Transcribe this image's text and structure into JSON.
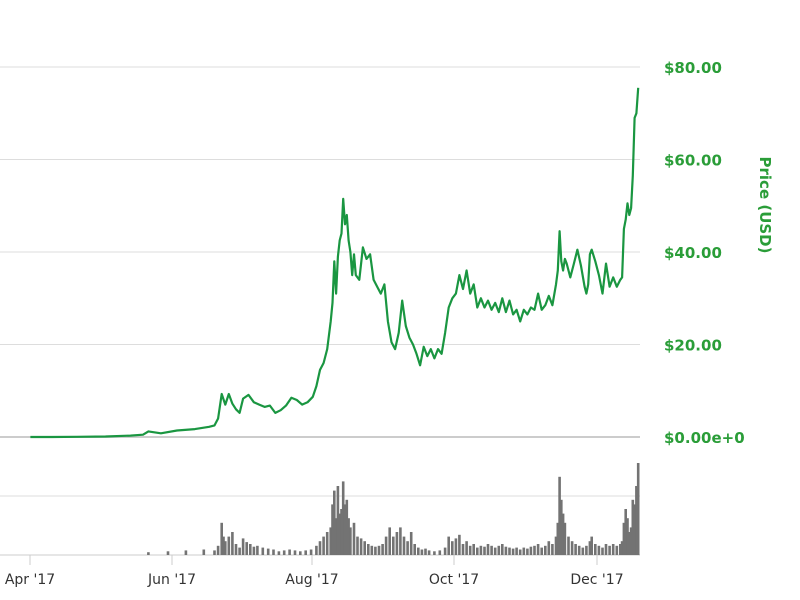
{
  "colors": {
    "price_line": "#1a9641",
    "axis_text": "#2a9d38",
    "volume_bar": "#737373",
    "grid": "#dddddd",
    "axis_line": "#cccccc",
    "background": "#ffffff"
  },
  "chart_data": {
    "type": "line",
    "ylabel": "Price (USD)",
    "y_ticks": [
      "$80.00",
      "$60.00",
      "$40.00",
      "$20.00",
      "$0.00e+0"
    ],
    "x_ticks": [
      "Apr '17",
      "Jun '17",
      "Aug '17",
      "Oct '17",
      "Dec '17"
    ],
    "ylim": [
      0,
      80
    ],
    "grid": true,
    "series": [
      {
        "values": [
          [
            "2017-03-20",
            0.0
          ],
          [
            "2017-04-01",
            0.0
          ],
          [
            "2017-04-15",
            0.05
          ],
          [
            "2017-05-01",
            0.1
          ],
          [
            "2017-05-15",
            0.3
          ],
          [
            "2017-05-22",
            0.5
          ],
          [
            "2017-05-25",
            1.2
          ],
          [
            "2017-06-01",
            0.8
          ],
          [
            "2017-06-10",
            1.4
          ],
          [
            "2017-06-20",
            1.7
          ],
          [
            "2017-06-28",
            2.2
          ],
          [
            "2017-07-01",
            2.5
          ],
          [
            "2017-07-03",
            4.0
          ],
          [
            "2017-07-05",
            9.3
          ],
          [
            "2017-07-07",
            7.0
          ],
          [
            "2017-07-09",
            9.3
          ],
          [
            "2017-07-11",
            7.2
          ],
          [
            "2017-07-13",
            6.0
          ],
          [
            "2017-07-15",
            5.2
          ],
          [
            "2017-07-17",
            8.3
          ],
          [
            "2017-07-20",
            9.1
          ],
          [
            "2017-07-23",
            7.5
          ],
          [
            "2017-07-26",
            7.0
          ],
          [
            "2017-07-29",
            6.5
          ],
          [
            "2017-08-01",
            6.8
          ],
          [
            "2017-08-04",
            5.2
          ],
          [
            "2017-08-07",
            5.8
          ],
          [
            "2017-08-10",
            6.8
          ],
          [
            "2017-08-13",
            8.5
          ],
          [
            "2017-08-16",
            8.0
          ],
          [
            "2017-08-19",
            7.0
          ],
          [
            "2017-08-22",
            7.5
          ],
          [
            "2017-08-25",
            8.7
          ],
          [
            "2017-08-27",
            11.0
          ],
          [
            "2017-08-29",
            14.5
          ],
          [
            "2017-08-31",
            16.0
          ],
          [
            "2017-09-02",
            19.0
          ],
          [
            "2017-09-04",
            25.0
          ],
          [
            "2017-09-05",
            29.0
          ],
          [
            "2017-09-06",
            38.0
          ],
          [
            "2017-09-07",
            31.0
          ],
          [
            "2017-09-08",
            39.0
          ],
          [
            "2017-09-09",
            42.5
          ],
          [
            "2017-09-10",
            44.0
          ],
          [
            "2017-09-11",
            51.5
          ],
          [
            "2017-09-12",
            46.0
          ],
          [
            "2017-09-13",
            48.0
          ],
          [
            "2017-09-14",
            42.5
          ],
          [
            "2017-09-15",
            40.0
          ],
          [
            "2017-09-16",
            35.0
          ],
          [
            "2017-09-17",
            39.5
          ],
          [
            "2017-09-18",
            35.0
          ],
          [
            "2017-09-20",
            34.0
          ],
          [
            "2017-09-22",
            41.0
          ],
          [
            "2017-09-24",
            38.5
          ],
          [
            "2017-09-26",
            39.5
          ],
          [
            "2017-09-28",
            34.0
          ],
          [
            "2017-09-30",
            32.5
          ],
          [
            "2017-10-02",
            31.0
          ],
          [
            "2017-10-04",
            33.0
          ],
          [
            "2017-10-06",
            25.0
          ],
          [
            "2017-10-08",
            20.5
          ],
          [
            "2017-10-10",
            19.0
          ],
          [
            "2017-10-12",
            22.5
          ],
          [
            "2017-10-14",
            29.5
          ],
          [
            "2017-10-16",
            24.0
          ],
          [
            "2017-10-18",
            21.5
          ],
          [
            "2017-10-20",
            20.0
          ],
          [
            "2017-10-22",
            18.0
          ],
          [
            "2017-10-24",
            15.5
          ],
          [
            "2017-10-26",
            19.5
          ],
          [
            "2017-10-28",
            17.5
          ],
          [
            "2017-10-30",
            19.0
          ],
          [
            "2017-11-01",
            17.0
          ],
          [
            "2017-11-03",
            19.0
          ],
          [
            "2017-11-05",
            18.0
          ],
          [
            "2017-11-07",
            22.5
          ],
          [
            "2017-11-09",
            28.0
          ],
          [
            "2017-11-11",
            30.0
          ],
          [
            "2017-11-13",
            31.0
          ],
          [
            "2017-11-15",
            35.0
          ],
          [
            "2017-11-17",
            32.0
          ],
          [
            "2017-11-19",
            36.0
          ],
          [
            "2017-11-21",
            31.0
          ],
          [
            "2017-11-23",
            33.0
          ],
          [
            "2017-11-25",
            28.0
          ],
          [
            "2017-11-27",
            30.0
          ],
          [
            "2017-11-29",
            28.0
          ],
          [
            "2017-12-01",
            29.5
          ],
          [
            "2017-12-03",
            27.5
          ],
          [
            "2017-12-05",
            29.0
          ],
          [
            "2017-12-07",
            27.0
          ],
          [
            "2017-12-09",
            30.0
          ],
          [
            "2017-12-11",
            27.0
          ],
          [
            "2017-12-13",
            29.5
          ],
          [
            "2017-12-15",
            26.5
          ],
          [
            "2017-12-17",
            27.5
          ],
          [
            "2017-12-19",
            25.0
          ],
          [
            "2017-12-21",
            27.5
          ],
          [
            "2017-12-23",
            26.5
          ],
          [
            "2017-12-25",
            28.0
          ],
          [
            "2017-12-27",
            27.5
          ],
          [
            "2017-12-29",
            31.0
          ],
          [
            "2017-12-31",
            27.5
          ],
          [
            "2018-01-02",
            28.5
          ],
          [
            "2018-01-04",
            30.5
          ],
          [
            "2018-01-06",
            28.5
          ],
          [
            "2018-01-08",
            33.0
          ],
          [
            "2018-01-09",
            36.0
          ],
          [
            "2018-01-10",
            44.5
          ],
          [
            "2018-01-11",
            38.0
          ],
          [
            "2018-01-12",
            36.0
          ],
          [
            "2018-01-13",
            38.5
          ],
          [
            "2018-01-14",
            37.5
          ],
          [
            "2018-01-16",
            34.5
          ],
          [
            "2018-01-18",
            37.5
          ],
          [
            "2018-01-20",
            40.5
          ],
          [
            "2018-01-22",
            37.0
          ],
          [
            "2018-01-24",
            32.5
          ],
          [
            "2018-01-25",
            31.0
          ],
          [
            "2018-01-26",
            33.0
          ],
          [
            "2018-01-27",
            39.5
          ],
          [
            "2018-01-28",
            40.5
          ],
          [
            "2018-01-30",
            38.0
          ],
          [
            "2018-02-01",
            35.0
          ],
          [
            "2018-02-03",
            31.0
          ],
          [
            "2018-02-05",
            37.5
          ],
          [
            "2018-02-07",
            32.5
          ],
          [
            "2018-02-09",
            34.5
          ],
          [
            "2018-02-11",
            32.5
          ],
          [
            "2018-02-13",
            34.0
          ],
          [
            "2018-02-14",
            34.5
          ],
          [
            "2018-02-15",
            45.0
          ],
          [
            "2018-02-16",
            47.0
          ],
          [
            "2018-02-17",
            50.5
          ],
          [
            "2018-02-18",
            48.0
          ],
          [
            "2018-02-19",
            49.5
          ],
          [
            "2018-02-20",
            56.5
          ],
          [
            "2018-02-21",
            69.0
          ],
          [
            "2018-02-22",
            70.0
          ],
          [
            "2018-02-23",
            75.5
          ]
        ]
      }
    ],
    "volume": [
      [
        "2017-05-25",
        0.03
      ],
      [
        "2017-06-05",
        0.04
      ],
      [
        "2017-06-15",
        0.05
      ],
      [
        "2017-06-25",
        0.06
      ],
      [
        "2017-07-01",
        0.05
      ],
      [
        "2017-07-03",
        0.1
      ],
      [
        "2017-07-05",
        0.35
      ],
      [
        "2017-07-06",
        0.2
      ],
      [
        "2017-07-07",
        0.15
      ],
      [
        "2017-07-09",
        0.2
      ],
      [
        "2017-07-11",
        0.25
      ],
      [
        "2017-07-13",
        0.12
      ],
      [
        "2017-07-15",
        0.08
      ],
      [
        "2017-07-17",
        0.18
      ],
      [
        "2017-07-19",
        0.14
      ],
      [
        "2017-07-21",
        0.12
      ],
      [
        "2017-07-23",
        0.09
      ],
      [
        "2017-07-25",
        0.1
      ],
      [
        "2017-07-28",
        0.08
      ],
      [
        "2017-07-31",
        0.07
      ],
      [
        "2017-08-03",
        0.06
      ],
      [
        "2017-08-06",
        0.04
      ],
      [
        "2017-08-09",
        0.05
      ],
      [
        "2017-08-12",
        0.06
      ],
      [
        "2017-08-15",
        0.05
      ],
      [
        "2017-08-18",
        0.04
      ],
      [
        "2017-08-21",
        0.05
      ],
      [
        "2017-08-24",
        0.06
      ],
      [
        "2017-08-27",
        0.1
      ],
      [
        "2017-08-29",
        0.15
      ],
      [
        "2017-08-31",
        0.2
      ],
      [
        "2017-09-02",
        0.25
      ],
      [
        "2017-09-04",
        0.3
      ],
      [
        "2017-09-05",
        0.55
      ],
      [
        "2017-09-06",
        0.7
      ],
      [
        "2017-09-07",
        0.4
      ],
      [
        "2017-09-08",
        0.75
      ],
      [
        "2017-09-09",
        0.45
      ],
      [
        "2017-09-10",
        0.5
      ],
      [
        "2017-09-11",
        0.8
      ],
      [
        "2017-09-12",
        0.55
      ],
      [
        "2017-09-13",
        0.6
      ],
      [
        "2017-09-14",
        0.4
      ],
      [
        "2017-09-15",
        0.3
      ],
      [
        "2017-09-17",
        0.35
      ],
      [
        "2017-09-19",
        0.2
      ],
      [
        "2017-09-21",
        0.18
      ],
      [
        "2017-09-23",
        0.15
      ],
      [
        "2017-09-25",
        0.12
      ],
      [
        "2017-09-27",
        0.1
      ],
      [
        "2017-09-29",
        0.09
      ],
      [
        "2017-10-01",
        0.1
      ],
      [
        "2017-10-03",
        0.12
      ],
      [
        "2017-10-05",
        0.2
      ],
      [
        "2017-10-07",
        0.3
      ],
      [
        "2017-10-09",
        0.2
      ],
      [
        "2017-10-11",
        0.25
      ],
      [
        "2017-10-13",
        0.3
      ],
      [
        "2017-10-15",
        0.2
      ],
      [
        "2017-10-17",
        0.15
      ],
      [
        "2017-10-19",
        0.25
      ],
      [
        "2017-10-21",
        0.12
      ],
      [
        "2017-10-23",
        0.08
      ],
      [
        "2017-10-25",
        0.06
      ],
      [
        "2017-10-27",
        0.07
      ],
      [
        "2017-10-29",
        0.05
      ],
      [
        "2017-11-01",
        0.04
      ],
      [
        "2017-11-04",
        0.05
      ],
      [
        "2017-11-07",
        0.08
      ],
      [
        "2017-11-09",
        0.2
      ],
      [
        "2017-11-11",
        0.15
      ],
      [
        "2017-11-13",
        0.18
      ],
      [
        "2017-11-15",
        0.22
      ],
      [
        "2017-11-17",
        0.12
      ],
      [
        "2017-11-19",
        0.15
      ],
      [
        "2017-11-21",
        0.1
      ],
      [
        "2017-11-23",
        0.12
      ],
      [
        "2017-11-25",
        0.08
      ],
      [
        "2017-11-27",
        0.1
      ],
      [
        "2017-11-29",
        0.09
      ],
      [
        "2017-12-01",
        0.12
      ],
      [
        "2017-12-03",
        0.1
      ],
      [
        "2017-12-05",
        0.08
      ],
      [
        "2017-12-07",
        0.1
      ],
      [
        "2017-12-09",
        0.12
      ],
      [
        "2017-12-11",
        0.09
      ],
      [
        "2017-12-13",
        0.08
      ],
      [
        "2017-12-15",
        0.07
      ],
      [
        "2017-12-17",
        0.08
      ],
      [
        "2017-12-19",
        0.06
      ],
      [
        "2017-12-21",
        0.08
      ],
      [
        "2017-12-23",
        0.07
      ],
      [
        "2017-12-25",
        0.09
      ],
      [
        "2017-12-27",
        0.1
      ],
      [
        "2017-12-29",
        0.12
      ],
      [
        "2017-12-31",
        0.08
      ],
      [
        "2018-01-02",
        0.1
      ],
      [
        "2018-01-04",
        0.15
      ],
      [
        "2018-01-06",
        0.12
      ],
      [
        "2018-01-08",
        0.2
      ],
      [
        "2018-01-09",
        0.35
      ],
      [
        "2018-01-10",
        0.85
      ],
      [
        "2018-01-11",
        0.6
      ],
      [
        "2018-01-12",
        0.45
      ],
      [
        "2018-01-13",
        0.35
      ],
      [
        "2018-01-15",
        0.2
      ],
      [
        "2018-01-17",
        0.15
      ],
      [
        "2018-01-19",
        0.12
      ],
      [
        "2018-01-21",
        0.1
      ],
      [
        "2018-01-23",
        0.08
      ],
      [
        "2018-01-25",
        0.1
      ],
      [
        "2018-01-27",
        0.15
      ],
      [
        "2018-01-28",
        0.2
      ],
      [
        "2018-01-30",
        0.12
      ],
      [
        "2018-02-01",
        0.1
      ],
      [
        "2018-02-03",
        0.08
      ],
      [
        "2018-02-05",
        0.12
      ],
      [
        "2018-02-07",
        0.1
      ],
      [
        "2018-02-09",
        0.12
      ],
      [
        "2018-02-11",
        0.1
      ],
      [
        "2018-02-13",
        0.12
      ],
      [
        "2018-02-14",
        0.15
      ],
      [
        "2018-02-15",
        0.35
      ],
      [
        "2018-02-16",
        0.5
      ],
      [
        "2018-02-17",
        0.4
      ],
      [
        "2018-02-18",
        0.25
      ],
      [
        "2018-02-19",
        0.3
      ],
      [
        "2018-02-20",
        0.6
      ],
      [
        "2018-02-21",
        0.55
      ],
      [
        "2018-02-22",
        0.75
      ],
      [
        "2018-02-23",
        1.0
      ]
    ]
  }
}
